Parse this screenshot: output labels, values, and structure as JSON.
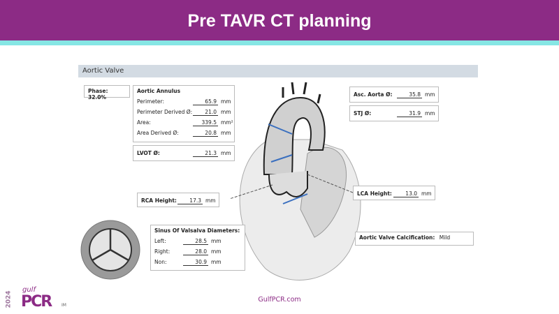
{
  "header": {
    "title": "Pre TAVR CT planning"
  },
  "section": {
    "title": "Aortic Valve"
  },
  "phase": {
    "label": "Phase: 32.0%"
  },
  "annulus": {
    "title": "Aortic Annulus",
    "rows": [
      {
        "label": "Perimeter:",
        "value": "65.9",
        "unit": "mm"
      },
      {
        "label": "Perimeter Derived Ø:",
        "value": "21.0",
        "unit": "mm"
      },
      {
        "label": "Area:",
        "value": "339.5",
        "unit": "mm²"
      },
      {
        "label": "Area Derived Ø:",
        "value": "20.8",
        "unit": "mm"
      }
    ]
  },
  "lvot": {
    "label": "LVOT Ø:",
    "value": "21.3",
    "unit": "mm"
  },
  "asc_aorta": {
    "label": "Asc. Aorta Ø:",
    "value": "35.8",
    "unit": "mm"
  },
  "stj": {
    "label": "STJ Ø:",
    "value": "31.9",
    "unit": "mm"
  },
  "rca": {
    "label": "RCA Height:",
    "value": "17.3",
    "unit": "mm"
  },
  "lca": {
    "label": "LCA Height:",
    "value": "13.0",
    "unit": "mm"
  },
  "sinus": {
    "title": "Sinus Of Valsalva Diameters:",
    "rows": [
      {
        "label": "Left:",
        "value": "28.5",
        "unit": "mm"
      },
      {
        "label": "Right:",
        "value": "28.0",
        "unit": "mm"
      },
      {
        "label": "Non:",
        "value": "30.9",
        "unit": "mm"
      }
    ]
  },
  "calcification": {
    "label": "Aortic Valve Calcification:",
    "value": "Mild"
  },
  "footer": {
    "url": "GulfPCR.com"
  },
  "logo": {
    "year": "2024",
    "gulf": "gulf",
    "pcr": "PCR",
    "suffix": "IM"
  }
}
